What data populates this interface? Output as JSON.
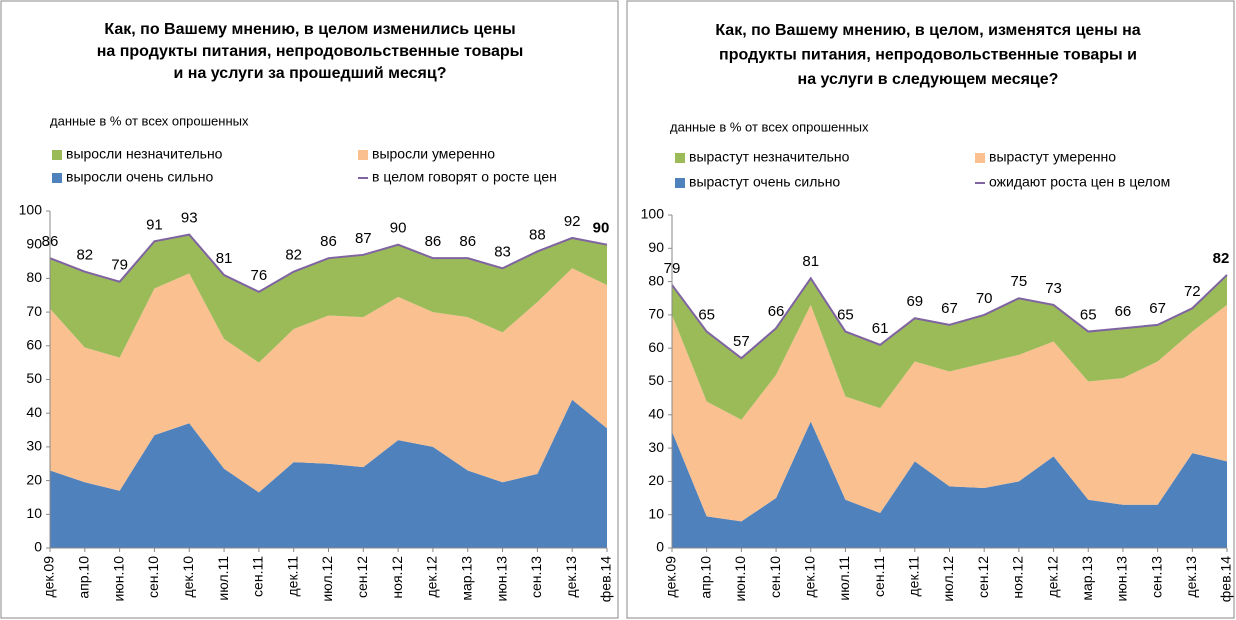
{
  "chart_data": [
    {
      "type": "area",
      "title": [
        "Как, по Вашему мнению, в целом изменились цены",
        "на продукты питания, непродовольственные товары",
        "и на услуги за прошедший месяц?"
      ],
      "subtitle": "данные в % от всех опрошенных",
      "categories": [
        "дек.09",
        "апр.10",
        "июн.10",
        "сен.10",
        "дек.10",
        "июл.11",
        "сен.11",
        "дек.11",
        "июл.12",
        "сен.12",
        "ноя.12",
        "дек.12",
        "мар.13",
        "июн.13",
        "сен.13",
        "дек.13",
        "фев.14"
      ],
      "series": [
        {
          "name": "выросли очень сильно",
          "color": "#4f81bd",
          "values": [
            23,
            19.5,
            17,
            33.5,
            37,
            23.5,
            16.5,
            25.5,
            25,
            24,
            32,
            30,
            23,
            19.5,
            22,
            44,
            35.5
          ]
        },
        {
          "name": "выросли умеренно",
          "color": "#fac090",
          "values": [
            48,
            40,
            39.5,
            43.5,
            44.5,
            38.5,
            38.5,
            39.5,
            44,
            44.5,
            42.5,
            40,
            45.5,
            44.5,
            51,
            39,
            42.5
          ]
        },
        {
          "name": "выросли незначительно",
          "color": "#9bbb59",
          "values": [
            15,
            22.5,
            22.5,
            14,
            11.5,
            19,
            21,
            17,
            17,
            18.5,
            15.5,
            16,
            17.5,
            19,
            15,
            9,
            12
          ]
        },
        {
          "name": "в целом говорят о росте цен",
          "color": "#8064a2",
          "type": "line",
          "values": [
            86,
            82,
            79,
            91,
            93,
            81,
            76,
            82,
            86,
            87,
            90,
            86,
            86,
            83,
            88,
            92,
            90
          ]
        }
      ],
      "ylim": [
        0,
        100
      ],
      "yticks": [
        0,
        10,
        20,
        30,
        40,
        50,
        60,
        70,
        80,
        90,
        100
      ]
    },
    {
      "type": "area",
      "title": [
        "Как, по Вашему мнению, в целом, изменятся цены  на",
        "продукты питания,  непродовольственные товары  и",
        "на услуги в следующем месяце?"
      ],
      "subtitle": "данные в % от всех опрошенных",
      "categories": [
        "дек.09",
        "апр.10",
        "июн.10",
        "сен.10",
        "дек.10",
        "июл.11",
        "сен.11",
        "дек.11",
        "июл.12",
        "сен.12",
        "ноя.12",
        "дек.12",
        "мар.13",
        "июн.13",
        "сен.13",
        "дек.13",
        "фев.14"
      ],
      "series": [
        {
          "name": "вырастут очень сильно",
          "color": "#4f81bd",
          "values": [
            35,
            9.5,
            8,
            15,
            38,
            14.5,
            10.5,
            26,
            18.5,
            18,
            20,
            27.5,
            14.5,
            13,
            13,
            28.5,
            26
          ]
        },
        {
          "name": "вырастут умеренно",
          "color": "#fac090",
          "values": [
            35,
            34.5,
            30.5,
            37,
            35,
            31,
            31.5,
            30,
            34.5,
            37.5,
            38,
            34.5,
            35.5,
            38,
            43,
            36.5,
            47
          ]
        },
        {
          "name": "вырастут незначительно",
          "color": "#9bbb59",
          "values": [
            9,
            21,
            18.5,
            14,
            8,
            19.5,
            19,
            13,
            14,
            14.5,
            17,
            11,
            15,
            15,
            11,
            7,
            9
          ]
        },
        {
          "name": "ожидают роста  цен в целом",
          "color": "#8064a2",
          "type": "line",
          "values": [
            79,
            65,
            57,
            66,
            81,
            65,
            61,
            69,
            67,
            70,
            75,
            73,
            65,
            66,
            67,
            72,
            82
          ]
        }
      ],
      "ylim": [
        0,
        100
      ],
      "yticks": [
        0,
        10,
        20,
        30,
        40,
        50,
        60,
        70,
        80,
        90,
        100
      ]
    }
  ]
}
